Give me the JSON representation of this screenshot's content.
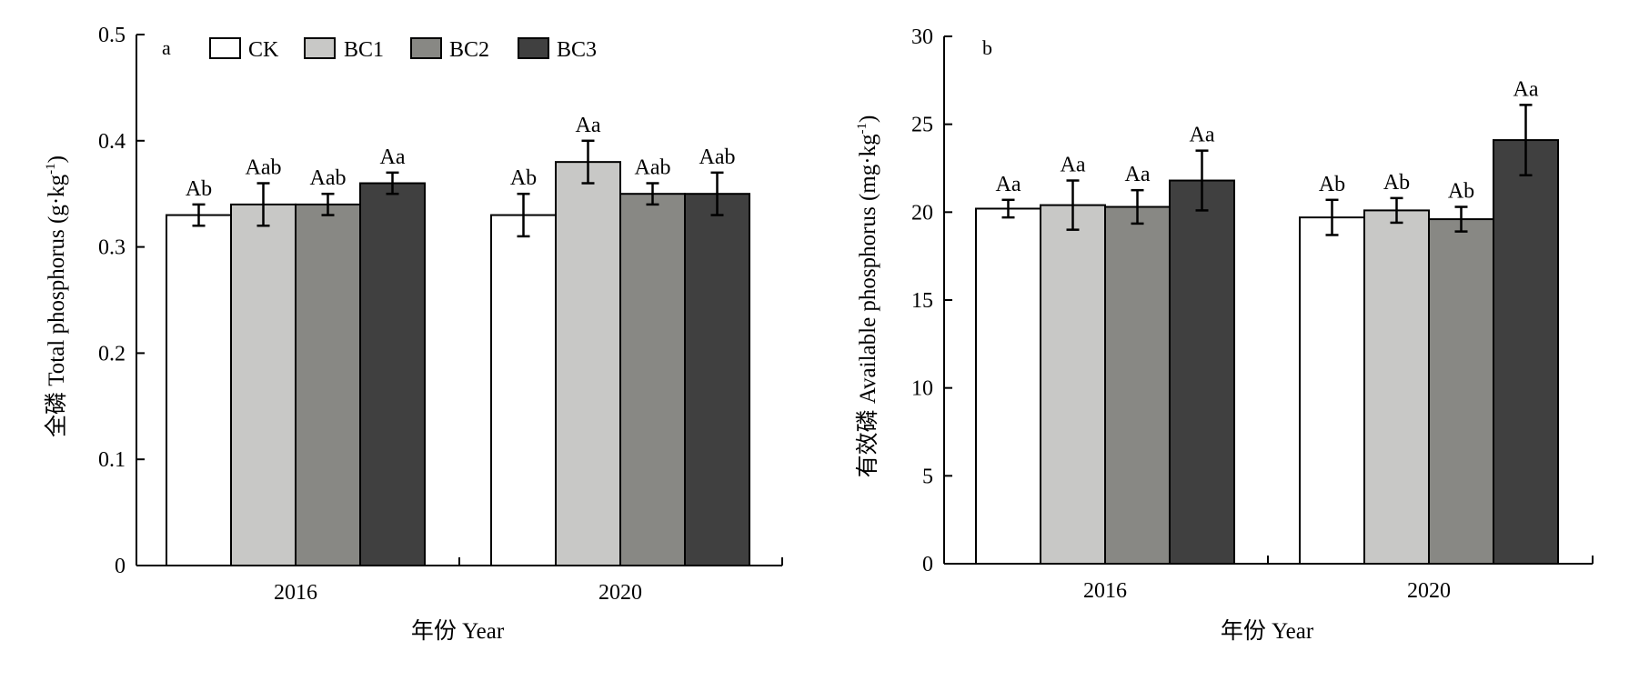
{
  "legend": [
    {
      "label": "CK",
      "color": "#ffffff"
    },
    {
      "label": "BC1",
      "color": "#c8c8c6"
    },
    {
      "label": "BC2",
      "color": "#888884"
    },
    {
      "label": "BC3",
      "color": "#404040"
    }
  ],
  "chart_data": [
    {
      "type": "bar",
      "panel_label": "a",
      "categories": [
        "2016",
        "2020"
      ],
      "xlabel": "年份 Year",
      "ylabel": "全磷 Total phosphorus (g·kg",
      "ylabel_sup": "-1",
      "ylabel_end": ")",
      "ylim": [
        0,
        0.5
      ],
      "yticks": [
        "0",
        "0.1",
        "0.2",
        "0.3",
        "0.4",
        "0.5"
      ],
      "legend_position": "top",
      "series": [
        {
          "name": "CK",
          "color": "#ffffff",
          "values": [
            0.33,
            0.33
          ],
          "errors": [
            0.01,
            0.02
          ],
          "labels": [
            "Ab",
            "Ab"
          ]
        },
        {
          "name": "BC1",
          "color": "#c8c8c6",
          "values": [
            0.34,
            0.38
          ],
          "errors": [
            0.02,
            0.02
          ],
          "labels": [
            "Aab",
            "Aa"
          ]
        },
        {
          "name": "BC2",
          "color": "#888884",
          "values": [
            0.34,
            0.35
          ],
          "errors": [
            0.01,
            0.01
          ],
          "labels": [
            "Aab",
            "Aab"
          ]
        },
        {
          "name": "BC3",
          "color": "#404040",
          "values": [
            0.36,
            0.35
          ],
          "errors": [
            0.01,
            0.02
          ],
          "labels": [
            "Aa",
            "Aab"
          ]
        }
      ]
    },
    {
      "type": "bar",
      "panel_label": "b",
      "categories": [
        "2016",
        "2020"
      ],
      "xlabel": "年份 Year",
      "ylabel": "有效磷 Available phosphorus (mg·kg",
      "ylabel_sup": "-1",
      "ylabel_end": ")",
      "ylim": [
        0,
        30
      ],
      "yticks": [
        "0",
        "5",
        "10",
        "15",
        "20",
        "25",
        "30"
      ],
      "series": [
        {
          "name": "CK",
          "color": "#ffffff",
          "values": [
            20.2,
            19.7
          ],
          "errors": [
            0.5,
            1.0
          ],
          "labels": [
            "Aa",
            "Ab"
          ]
        },
        {
          "name": "BC1",
          "color": "#c8c8c6",
          "values": [
            20.4,
            20.1
          ],
          "errors": [
            1.4,
            0.7
          ],
          "labels": [
            "Aa",
            "Ab"
          ]
        },
        {
          "name": "BC2",
          "color": "#888884",
          "values": [
            20.3,
            19.6
          ],
          "errors": [
            0.95,
            0.7
          ],
          "labels": [
            "Aa",
            "Ab"
          ]
        },
        {
          "name": "BC3",
          "color": "#404040",
          "values": [
            21.8,
            24.1
          ],
          "errors": [
            1.7,
            2.0
          ],
          "labels": [
            "Aa",
            "Aa"
          ]
        }
      ]
    }
  ]
}
